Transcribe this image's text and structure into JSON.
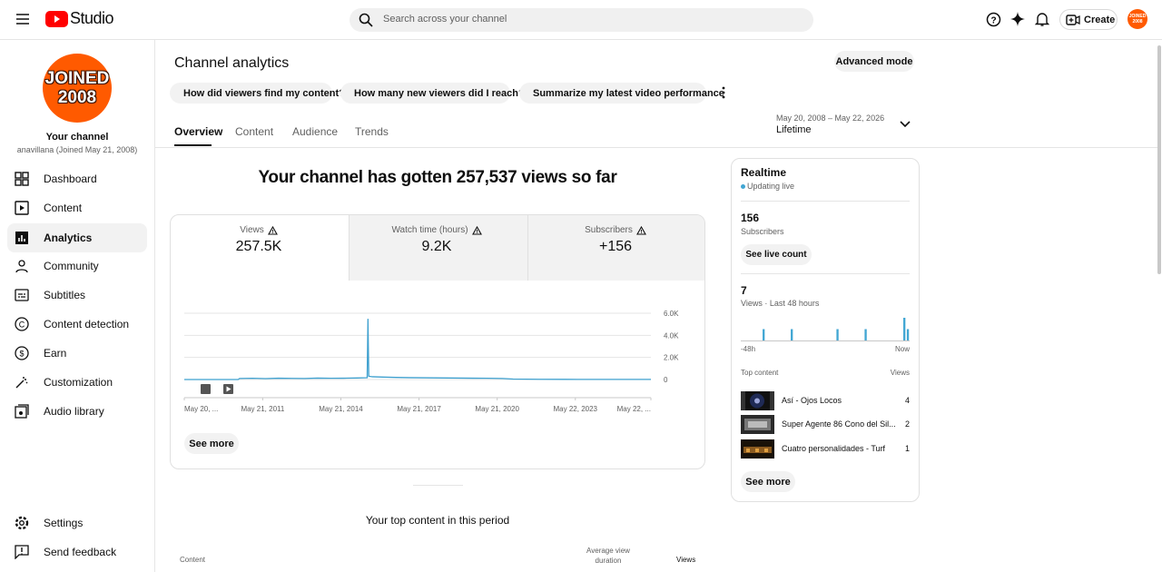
{
  "header": {
    "logo": "Studio",
    "search_placeholder": "Search across your channel",
    "create": "Create",
    "avatar": [
      "JOINED",
      "2008"
    ]
  },
  "sidebar": {
    "avatar": [
      "JOINED",
      "2008"
    ],
    "channel_title": "Your channel",
    "channel_subtitle": "anavillana (Joined May 21, 2008)",
    "nav": [
      "Dashboard",
      "Content",
      "Analytics",
      "Community",
      "Subtitles",
      "Content detection",
      "Earn",
      "Customization",
      "Audio library"
    ],
    "footer": [
      "Settings",
      "Send feedback"
    ]
  },
  "main": {
    "title": "Channel analytics",
    "advanced_mode": "Advanced mode",
    "chips": [
      "How did viewers find my content?",
      "How many new viewers did I reach?",
      "Summarize my latest video performance"
    ],
    "tabs": [
      "Overview",
      "Content",
      "Audience",
      "Trends"
    ],
    "date_range": "May 20, 2008 – May 22, 2026",
    "period": "Lifetime",
    "headline": "Your channel has gotten 257,537 views so far",
    "stats": [
      {
        "label": "Views",
        "value": "257.5K"
      },
      {
        "label": "Watch time (hours)",
        "value": "9.2K"
      },
      {
        "label": "Subscribers",
        "value": "+156"
      }
    ],
    "chart": {
      "type": "line",
      "color": "#3ea0cf",
      "x": [
        2008.38,
        2010.45,
        2010.5,
        2011,
        2011.5,
        2012,
        2012.5,
        2013,
        2013.5,
        2014,
        2014.5,
        2015,
        2015.4,
        2015.43,
        2015.46,
        2015.6,
        2016,
        2016.5,
        2017,
        2017.5,
        2018,
        2018.5,
        2019,
        2019.5,
        2020,
        2020.6,
        2021,
        2022,
        2023,
        2024,
        2025,
        2026.29
      ],
      "values": [
        0,
        0,
        90,
        110,
        80,
        120,
        100,
        90,
        130,
        110,
        120,
        140,
        160,
        5500,
        300,
        250,
        220,
        190,
        170,
        160,
        150,
        140,
        130,
        120,
        110,
        90,
        40,
        20,
        15,
        10,
        10,
        10
      ],
      "xlim": [
        2008.38,
        2026.29
      ],
      "xticks": [
        {
          "value": 2008.38,
          "label": "May 20, ..."
        },
        {
          "value": 2011.39,
          "label": "May 21, 2011"
        },
        {
          "value": 2014.39,
          "label": "May 21, 2014"
        },
        {
          "value": 2017.39,
          "label": "May 21, 2017"
        },
        {
          "value": 2020.39,
          "label": "May 21, 2020"
        },
        {
          "value": 2023.39,
          "label": "May 22, 2023"
        },
        {
          "value": 2026.29,
          "label": "May 22, ..."
        }
      ],
      "ylim": [
        0,
        6000
      ],
      "yticks": [
        0,
        {
          "value": 2000,
          "label": "2.0K"
        },
        {
          "value": 4000,
          "label": "4.0K"
        },
        {
          "value": 6000,
          "label": "6.0K"
        }
      ],
      "grid": true
    },
    "see_more": "See more",
    "top_content": {
      "title": "Your top content in this period",
      "columns": [
        "Content",
        "Average view duration",
        "Views"
      ]
    }
  },
  "realtime": {
    "title": "Realtime",
    "status": "Updating live",
    "subscribers": 156,
    "subscribers_label": "Subscribers",
    "see_live_count": "See live count",
    "views": 7,
    "views_label": "Views · Last 48 hours",
    "chart": {
      "type": "bar",
      "color": "#41a6d3",
      "values": [
        0,
        0,
        0,
        0,
        0,
        0,
        1,
        0,
        0,
        0,
        0,
        0,
        0,
        0,
        1,
        0,
        0,
        0,
        0,
        0,
        0,
        0,
        0,
        0,
        0,
        0,
        0,
        1,
        0,
        0,
        0,
        0,
        0,
        0,
        0,
        1,
        0,
        0,
        0,
        0,
        0,
        0,
        0,
        0,
        0,
        0,
        2,
        1
      ],
      "x_start": "-48h",
      "x_end": "Now"
    },
    "top_content_label": "Top content",
    "views_column": "Views",
    "items": [
      {
        "title": "Así - Ojos Locos",
        "views": 4
      },
      {
        "title": "Super Agente 86 Cono del Sil...",
        "views": 2
      },
      {
        "title": "Cuatro personalidades - Turf",
        "views": 1
      }
    ],
    "see_more": "See more"
  }
}
